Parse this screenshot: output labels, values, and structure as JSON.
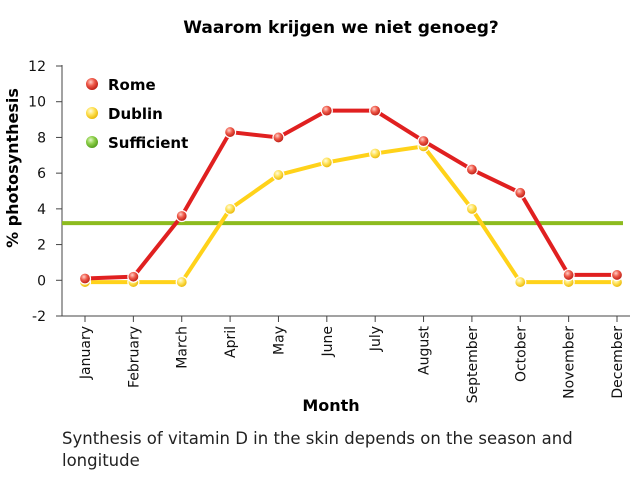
{
  "chart_data": {
    "type": "line",
    "title": "Waarom krijgen we niet genoeg?",
    "xlabel": "Month",
    "ylabel": "% photosynthesis",
    "categories": [
      "January",
      "February",
      "March",
      "April",
      "May",
      "June",
      "July",
      "August",
      "September",
      "October",
      "November",
      "December"
    ],
    "ylim": [
      -2,
      12
    ],
    "yticks": [
      -2,
      0,
      2,
      4,
      6,
      8,
      10,
      12
    ],
    "series": [
      {
        "name": "Rome",
        "color": "#e02020",
        "marker_color": "#e8473a",
        "values": [
          0.1,
          0.2,
          3.6,
          8.3,
          8.0,
          9.5,
          9.5,
          7.8,
          6.2,
          4.9,
          0.3,
          0.3
        ]
      },
      {
        "name": "Dublin",
        "color": "#ffd21a",
        "marker_color": "#ffe14a",
        "values": [
          -0.1,
          -0.1,
          -0.1,
          4.0,
          5.9,
          6.6,
          7.1,
          7.5,
          4.0,
          -0.1,
          -0.1,
          -0.1
        ]
      },
      {
        "name": "Sufficient",
        "color": "#8dbb1f",
        "marker_color": "#7fc13a",
        "values": [
          3.2,
          3.2,
          3.2,
          3.2,
          3.2,
          3.2,
          3.2,
          3.2,
          3.2,
          3.2,
          3.2,
          3.2
        ]
      }
    ],
    "legend_position": "top-left",
    "grid": false
  },
  "caption": "Synthesis of vitamin D in the skin depends on the season and longitude"
}
